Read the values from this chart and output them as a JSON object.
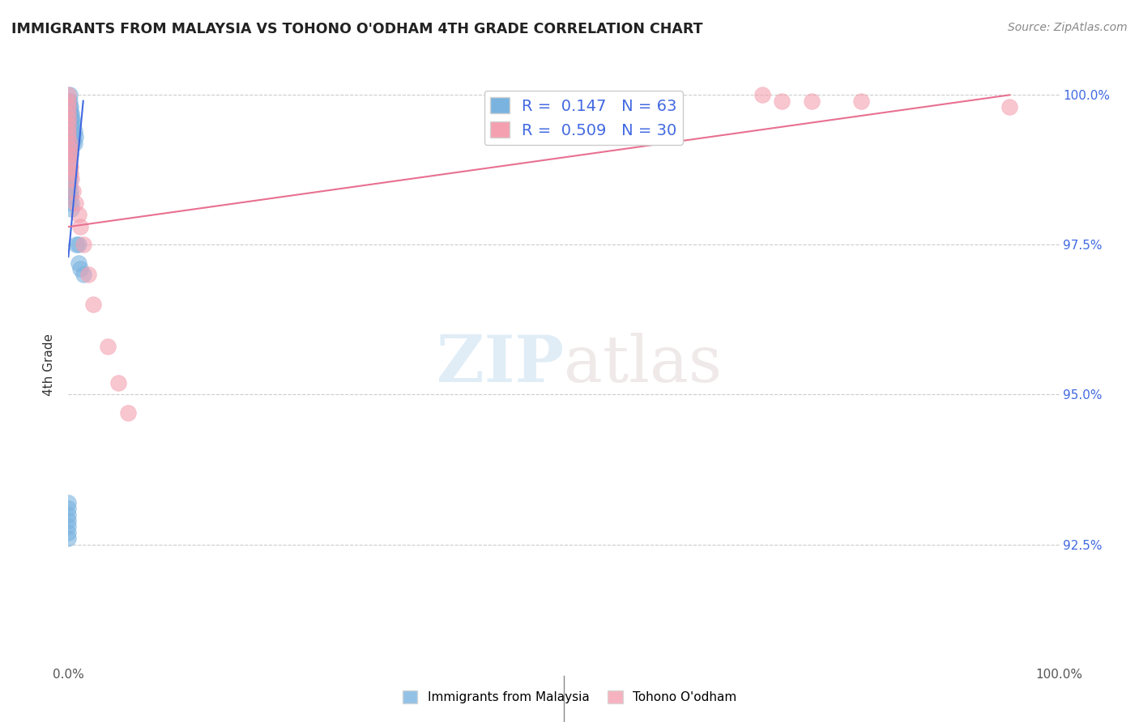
{
  "title": "IMMIGRANTS FROM MALAYSIA VS TOHONO O'ODHAM 4TH GRADE CORRELATION CHART",
  "source": "Source: ZipAtlas.com",
  "ylabel": "4th Grade",
  "ytick_labels": [
    "92.5%",
    "95.0%",
    "97.5%",
    "100.0%"
  ],
  "ytick_values": [
    0.925,
    0.95,
    0.975,
    1.0
  ],
  "xlim": [
    0.0,
    1.0
  ],
  "ylim": [
    0.905,
    1.005
  ],
  "legend1_label": "R =  0.147   N = 63",
  "legend2_label": "R =  0.509   N = 30",
  "watermark_zip": "ZIP",
  "watermark_atlas": "atlas",
  "blue_color": "#7ab3e0",
  "pink_color": "#f4a0b0",
  "blue_line_color": "#4169E1",
  "pink_line_color": "#e87090",
  "blue_scatter": {
    "x": [
      0.001,
      0.001,
      0.001,
      0.001,
      0.001,
      0.001,
      0.001,
      0.001,
      0.001,
      0.001,
      0.002,
      0.002,
      0.002,
      0.002,
      0.002,
      0.002,
      0.002,
      0.002,
      0.002,
      0.003,
      0.003,
      0.003,
      0.003,
      0.003,
      0.004,
      0.004,
      0.004,
      0.005,
      0.005,
      0.006,
      0.006,
      0.007,
      0.008,
      0.01,
      0.01,
      0.012,
      0.015,
      0.0,
      0.0,
      0.0,
      0.0,
      0.0,
      0.0,
      0.0,
      0.0,
      0.0,
      0.0,
      0.0,
      0.001,
      0.001,
      0.001,
      0.001,
      0.002,
      0.002,
      0.003,
      0.003,
      0.0,
      0.0,
      0.0,
      0.0,
      0.0,
      0.0,
      0.0
    ],
    "y": [
      1.0,
      0.999,
      0.998,
      0.997,
      0.996,
      0.995,
      0.994,
      0.993,
      0.992,
      0.991,
      0.998,
      0.997,
      0.996,
      0.995,
      0.994,
      0.993,
      0.992,
      0.991,
      0.99,
      0.997,
      0.996,
      0.995,
      0.993,
      0.992,
      0.996,
      0.994,
      0.992,
      0.995,
      0.993,
      0.994,
      0.992,
      0.993,
      0.975,
      0.975,
      0.972,
      0.971,
      0.97,
      0.999,
      0.998,
      0.997,
      0.996,
      0.995,
      0.994,
      0.993,
      0.992,
      0.991,
      0.99,
      0.989,
      0.988,
      0.987,
      0.986,
      0.985,
      0.984,
      0.983,
      0.982,
      0.981,
      0.932,
      0.931,
      0.93,
      0.929,
      0.928,
      0.927,
      0.926
    ]
  },
  "pink_scatter": {
    "x": [
      0.0,
      0.0,
      0.0,
      0.0,
      0.0,
      0.0,
      0.0,
      0.0,
      0.001,
      0.001,
      0.001,
      0.001,
      0.002,
      0.002,
      0.003,
      0.005,
      0.007,
      0.01,
      0.012,
      0.015,
      0.02,
      0.025,
      0.04,
      0.05,
      0.06,
      0.7,
      0.72,
      0.75,
      0.8,
      0.95
    ],
    "y": [
      1.0,
      0.999,
      0.998,
      0.997,
      0.996,
      0.995,
      0.994,
      0.993,
      0.992,
      0.991,
      0.99,
      0.989,
      0.988,
      0.987,
      0.986,
      0.984,
      0.982,
      0.98,
      0.978,
      0.975,
      0.97,
      0.965,
      0.958,
      0.952,
      0.947,
      1.0,
      0.999,
      0.999,
      0.999,
      0.998
    ]
  },
  "blue_trendline": {
    "x": [
      0.0,
      0.015
    ],
    "y": [
      0.973,
      0.999
    ]
  },
  "pink_trendline": {
    "x": [
      0.0,
      0.95
    ],
    "y": [
      0.978,
      1.0
    ]
  }
}
